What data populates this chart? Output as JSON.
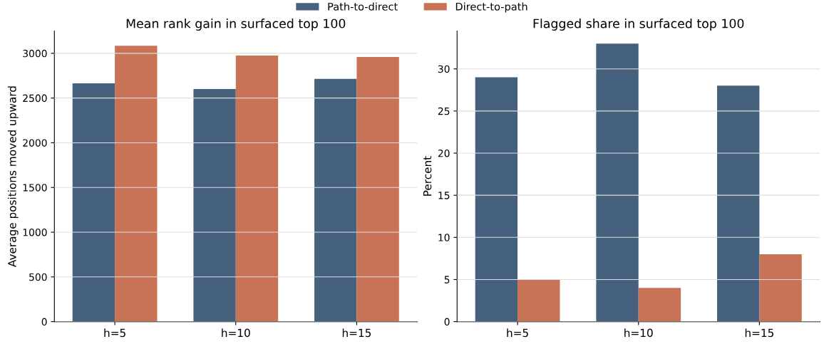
{
  "chart_data": [
    {
      "type": "bar",
      "title": "Mean rank gain in surfaced top 100",
      "ylabel": "Average positions moved upward",
      "categories": [
        "h=5",
        "h=10",
        "h=15"
      ],
      "series": [
        {
          "name": "Path-to-direct",
          "color": "#46617e",
          "values": [
            2665,
            2600,
            2715
          ]
        },
        {
          "name": "Direct-to-path",
          "color": "#c87356",
          "values": [
            3085,
            2975,
            2960
          ]
        }
      ],
      "ylim": [
        0,
        3250
      ],
      "yticks": [
        0,
        500,
        1000,
        1500,
        2000,
        2500,
        3000
      ],
      "grid": "y",
      "legend": "top"
    },
    {
      "type": "bar",
      "title": "Flagged share in surfaced top 100",
      "ylabel": "Percent",
      "categories": [
        "h=5",
        "h=10",
        "h=15"
      ],
      "series": [
        {
          "color": "#46617e",
          "values": [
            29,
            33,
            28
          ]
        },
        {
          "color": "#c87356",
          "values": [
            5,
            4,
            8
          ]
        }
      ],
      "ylim": [
        0,
        34.5
      ],
      "yticks": [
        0,
        5,
        10,
        15,
        20,
        25,
        30
      ],
      "grid": "y"
    }
  ]
}
